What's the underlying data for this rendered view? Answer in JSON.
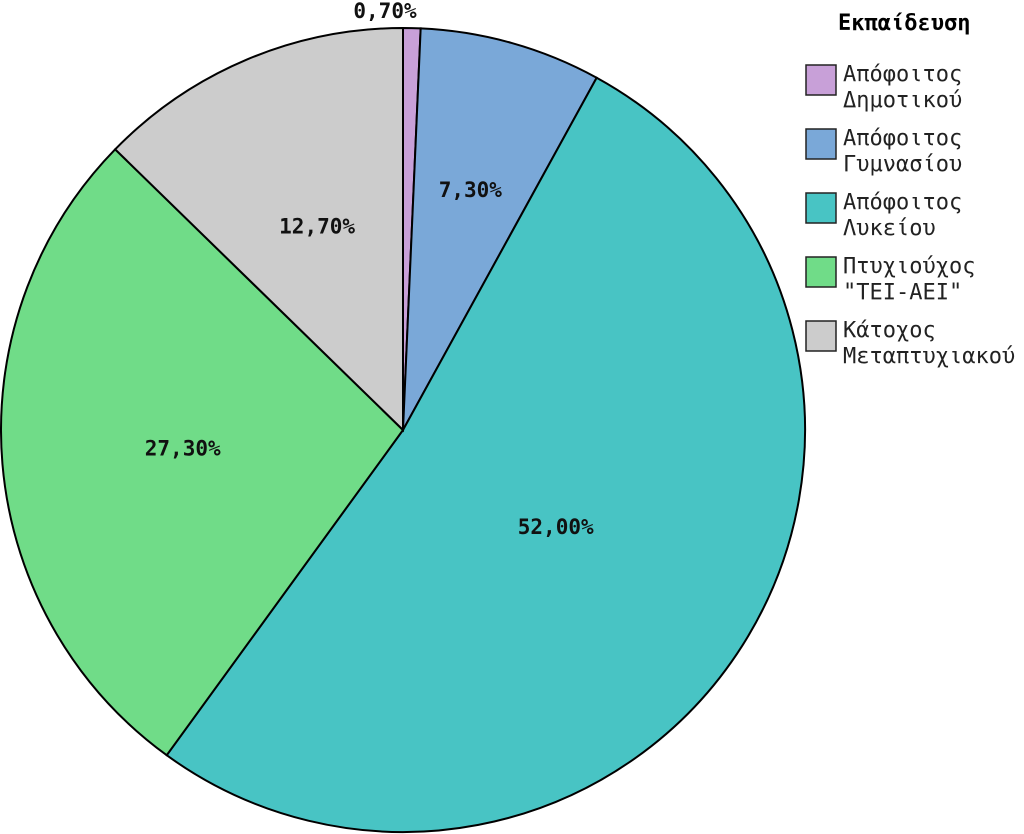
{
  "chart_data": {
    "type": "pie",
    "title": "",
    "legend_title": "Εκπαίδευση",
    "legend_position": "right",
    "start_angle": "top, clockwise",
    "slices": [
      {
        "label": [
          "Απόφοιτος",
          "Δημοτικού"
        ],
        "value": 0.7,
        "display": "0,70%",
        "color": "#c8a0d8"
      },
      {
        "label": [
          "Απόφοιτος",
          "Γυμνασίου"
        ],
        "value": 7.3,
        "display": "7,30%",
        "color": "#7aa8d8"
      },
      {
        "label": [
          "Απόφοιτος",
          "Λυκείου"
        ],
        "value": 52.0,
        "display": "52,00%",
        "color": "#48c4c4"
      },
      {
        "label": [
          "Πτυχιούχος",
          "\"ΤΕΙ-ΑΕΙ\""
        ],
        "value": 27.3,
        "display": "27,30%",
        "color": "#70dc88"
      },
      {
        "label": [
          "Κάτοχος",
          "Μεταπτυχιακού"
        ],
        "value": 12.7,
        "display": "12,70%",
        "color": "#cccccc"
      }
    ]
  }
}
